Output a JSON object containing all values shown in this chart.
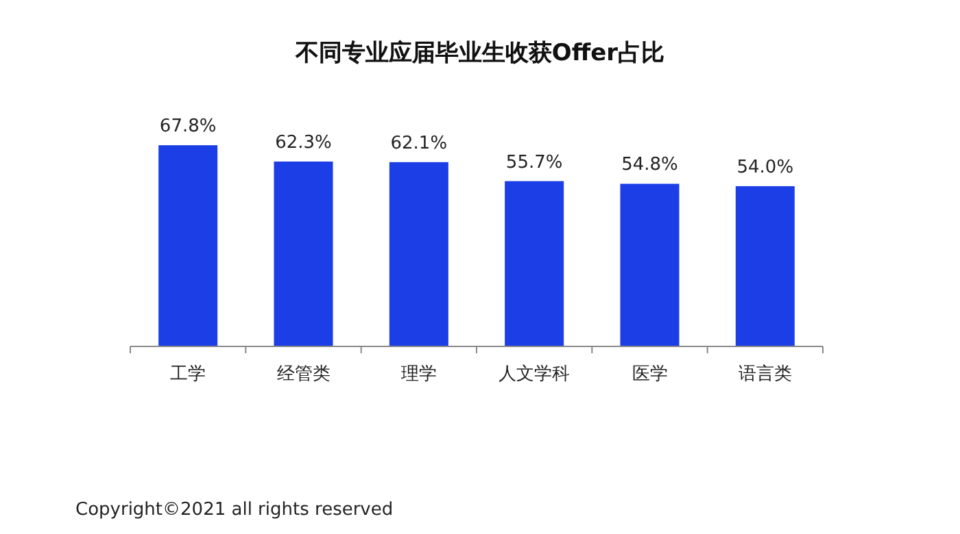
{
  "chart_data": {
    "type": "bar",
    "title": "不同专业应届毕业生收获Offer占比",
    "categories": [
      "工学",
      "经管类",
      "理学",
      "人文学科",
      "医学",
      "语言类"
    ],
    "values": [
      67.8,
      62.3,
      62.1,
      55.7,
      54.8,
      54.0
    ],
    "value_labels": [
      "67.8%",
      "62.3%",
      "62.1%",
      "55.7%",
      "54.8%",
      "54.0%"
    ],
    "color": "#1c3ee6",
    "annotations": [
      "Copyright©2021 all rights reserved"
    ]
  }
}
